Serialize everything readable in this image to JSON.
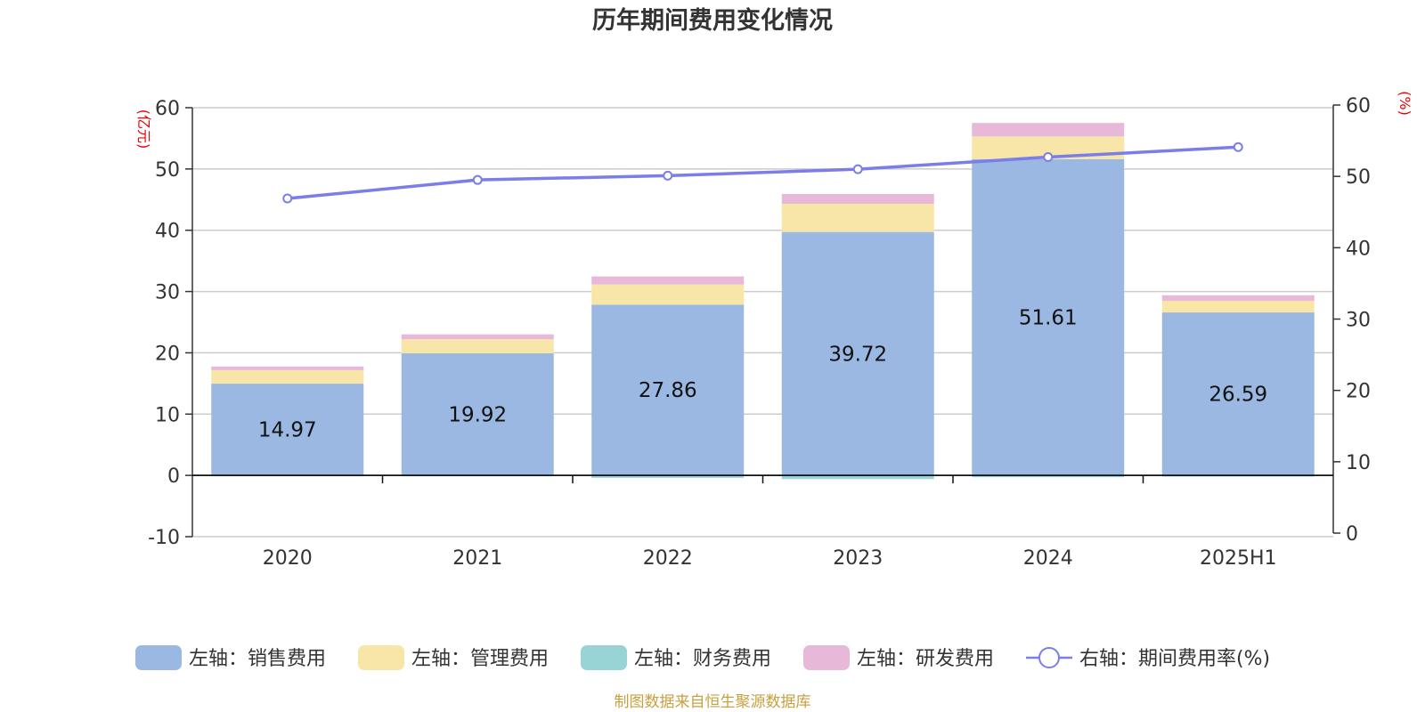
{
  "chart_data": {
    "type": "bar",
    "title": "历年期间费用变化情况",
    "ylabel_left": "(亿元)",
    "ylabel_right": "(%)",
    "categories": [
      "2020",
      "2021",
      "2022",
      "2023",
      "2024",
      "2025H1"
    ],
    "ylim_left": [
      -10,
      60
    ],
    "yticks_left": [
      "60",
      "50",
      "40",
      "30",
      "20",
      "10",
      "0",
      "-10"
    ],
    "ylim_right": [
      0,
      60
    ],
    "yticks_right": [
      "60",
      "50",
      "40",
      "30",
      "20",
      "10",
      "0"
    ],
    "grid": true,
    "legend_position": "bottom",
    "series": [
      {
        "name": "左轴：销售费用",
        "type": "bar",
        "axis": "left",
        "stack": "cost",
        "color": "#9bb8e2",
        "values": [
          14.97,
          19.92,
          27.86,
          39.72,
          51.61,
          26.59
        ],
        "labels": [
          "14.97",
          "19.92",
          "27.86",
          "39.72",
          "51.61",
          "26.59"
        ]
      },
      {
        "name": "左轴：管理费用",
        "type": "bar",
        "axis": "left",
        "stack": "cost",
        "color": "#f8e6a8",
        "values": [
          2.2,
          2.3,
          3.3,
          4.6,
          3.7,
          1.9
        ]
      },
      {
        "name": "左轴：财务费用",
        "type": "bar",
        "axis": "left",
        "stack": "cost",
        "color": "#98d3d5",
        "values": [
          -0.1,
          -0.15,
          -0.4,
          -0.6,
          -0.3,
          -0.2
        ]
      },
      {
        "name": "左轴：研发费用",
        "type": "bar",
        "axis": "left",
        "stack": "cost",
        "color": "#e7b8d8",
        "values": [
          0.6,
          0.8,
          1.3,
          1.6,
          2.2,
          0.9
        ]
      },
      {
        "name": "右轴：期间费用率(%)",
        "type": "line",
        "axis": "right",
        "color": "#7b7de8",
        "values": [
          46.9,
          49.5,
          50.1,
          51.0,
          52.7,
          54.1
        ]
      }
    ]
  },
  "footer": {
    "source": "制图数据来自恒生聚源数据库"
  },
  "colors": {
    "axis": "#333333",
    "grid": "#cccccc",
    "unit_label": "#ee0000",
    "source": "#c8a040"
  }
}
